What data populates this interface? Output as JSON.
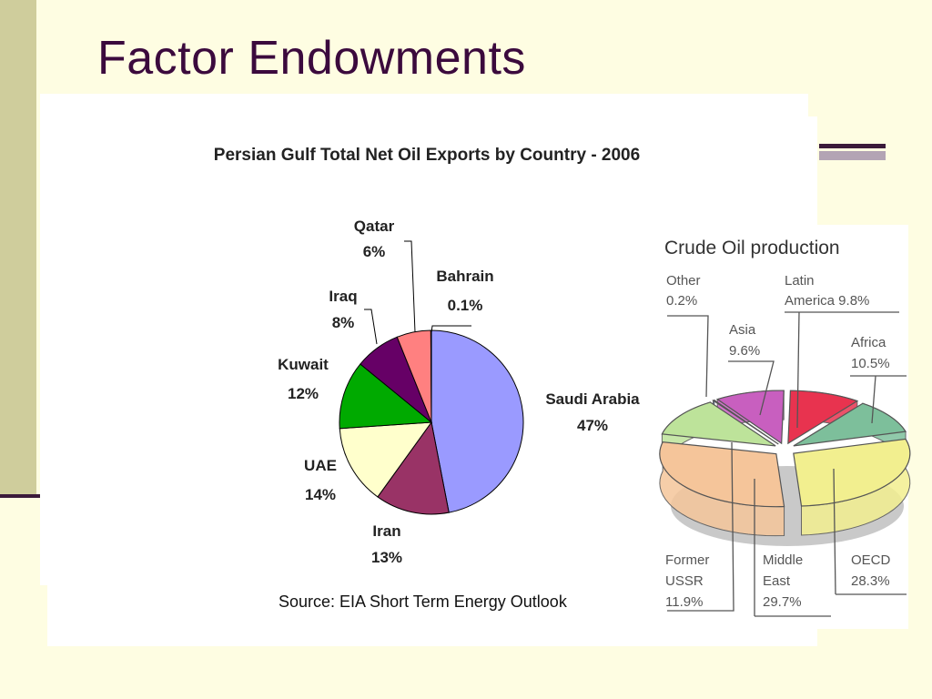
{
  "slide": {
    "title": "Factor Endowments"
  },
  "colors": {
    "background": "#fefde2",
    "title": "#3b0a3d",
    "band": "#cfcd9c",
    "rule": "#3b1a3a"
  },
  "chart_data": [
    {
      "type": "pie",
      "title": "Persian Gulf Total Net Oil Exports by Country - 2006",
      "source": "Source:  EIA Short Term Energy Outlook",
      "slices": [
        {
          "name": "Saudi Arabia",
          "label": "47%",
          "value": 47,
          "color": "#9a9aff"
        },
        {
          "name": "Iran",
          "label": "13%",
          "value": 13,
          "color": "#993366"
        },
        {
          "name": "UAE",
          "label": "14%",
          "value": 14,
          "color": "#ffffcc"
        },
        {
          "name": "Kuwait",
          "label": "12%",
          "value": 12,
          "color": "#00aa00"
        },
        {
          "name": "Iraq",
          "label": "8%",
          "value": 8,
          "color": "#660066"
        },
        {
          "name": "Qatar",
          "label": "6%",
          "value": 6,
          "color": "#ff8080"
        },
        {
          "name": "Bahrain",
          "label": "0.1%",
          "value": 0.1,
          "color": "#0066cc"
        }
      ]
    },
    {
      "type": "pie",
      "title": "Crude Oil production",
      "slices": [
        {
          "name": "Latin America",
          "label": "9.8%",
          "value": 9.8,
          "color": "#e8334f"
        },
        {
          "name": "Africa",
          "label": "10.5%",
          "value": 10.5,
          "color": "#7dbf9b"
        },
        {
          "name": "OECD",
          "label": "28.3%",
          "value": 28.3,
          "color": "#f2ef8f"
        },
        {
          "name": "Middle East",
          "label": "29.7%",
          "value": 29.7,
          "color": "#f5c59a"
        },
        {
          "name": "Former USSR",
          "label": "11.9%",
          "value": 11.9,
          "color": "#bde39a"
        },
        {
          "name": "Other",
          "label": "0.2%",
          "value": 0.2,
          "color": "#4466cc"
        },
        {
          "name": "Asia",
          "label": "9.6%",
          "value": 9.6,
          "color": "#c85fbf"
        }
      ]
    }
  ]
}
